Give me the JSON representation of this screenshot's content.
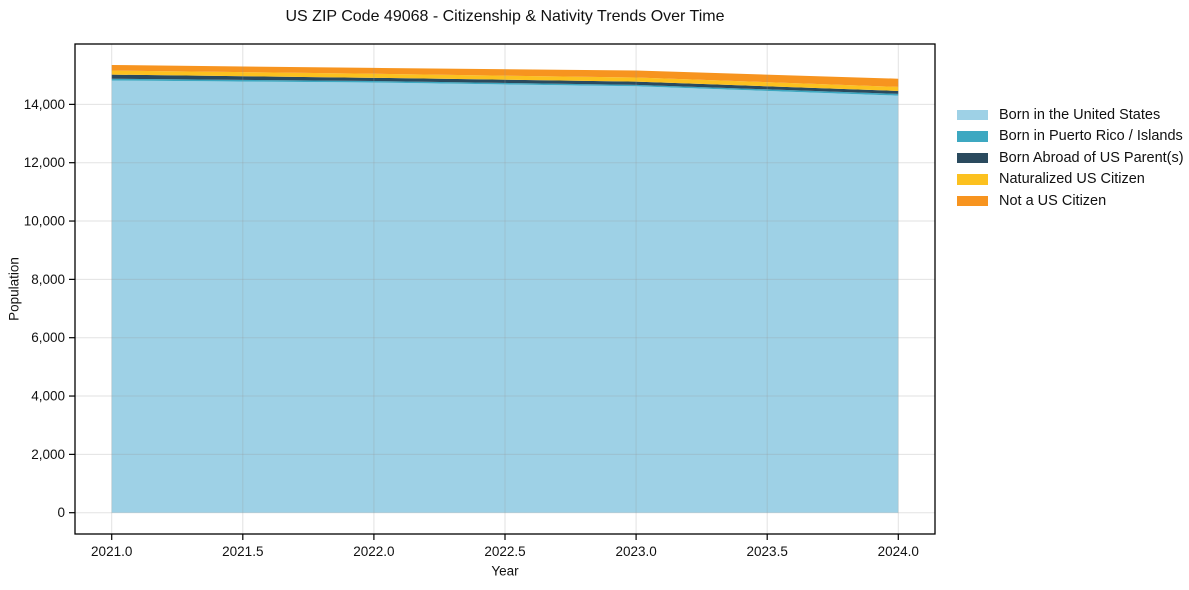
{
  "chart_data": {
    "type": "area",
    "stacked": true,
    "title": "US ZIP Code 49068 - Citizenship & Nativity Trends Over Time",
    "xlabel": "Year",
    "ylabel": "Population",
    "x": [
      2021,
      2022,
      2023,
      2024
    ],
    "series": [
      {
        "name": "Born in the United States",
        "color": "#9ED1E6",
        "values": [
          14820,
          14750,
          14620,
          14300
        ]
      },
      {
        "name": "Born in Puerto Rico / Islands",
        "color": "#3DA8C1",
        "values": [
          60,
          50,
          50,
          60
        ]
      },
      {
        "name": "Born Abroad of US Parent(s)",
        "color": "#2A4A5E",
        "values": [
          140,
          110,
          110,
          100
        ]
      },
      {
        "name": "Naturalized US Citizen",
        "color": "#FCC11F",
        "values": [
          140,
          140,
          140,
          140
        ]
      },
      {
        "name": "Not a US Citizen",
        "color": "#F7941F",
        "values": [
          190,
          200,
          240,
          280
        ]
      }
    ],
    "totals": [
      15350,
      15250,
      15160,
      14880
    ],
    "xlim": [
      2020.86,
      2024.14
    ],
    "ylim": [
      -730,
      16070
    ],
    "xticks": {
      "values": [
        2021.0,
        2021.5,
        2022.0,
        2022.5,
        2023.0,
        2023.5,
        2024.0
      ],
      "labels": [
        "2021.0",
        "2021.5",
        "2022.0",
        "2022.5",
        "2023.0",
        "2023.5",
        "2024.0"
      ]
    },
    "yticks": {
      "values": [
        0,
        2000,
        4000,
        6000,
        8000,
        10000,
        12000,
        14000
      ],
      "labels": [
        "0",
        "2,000",
        "4,000",
        "6,000",
        "8,000",
        "10,000",
        "12,000",
        "14,000"
      ]
    },
    "grid": true,
    "legend_position": "right",
    "colors": {
      "background": "#ffffff",
      "plot_border": "#000000",
      "gridline": "#e2e2e2",
      "text": "#111111"
    }
  }
}
